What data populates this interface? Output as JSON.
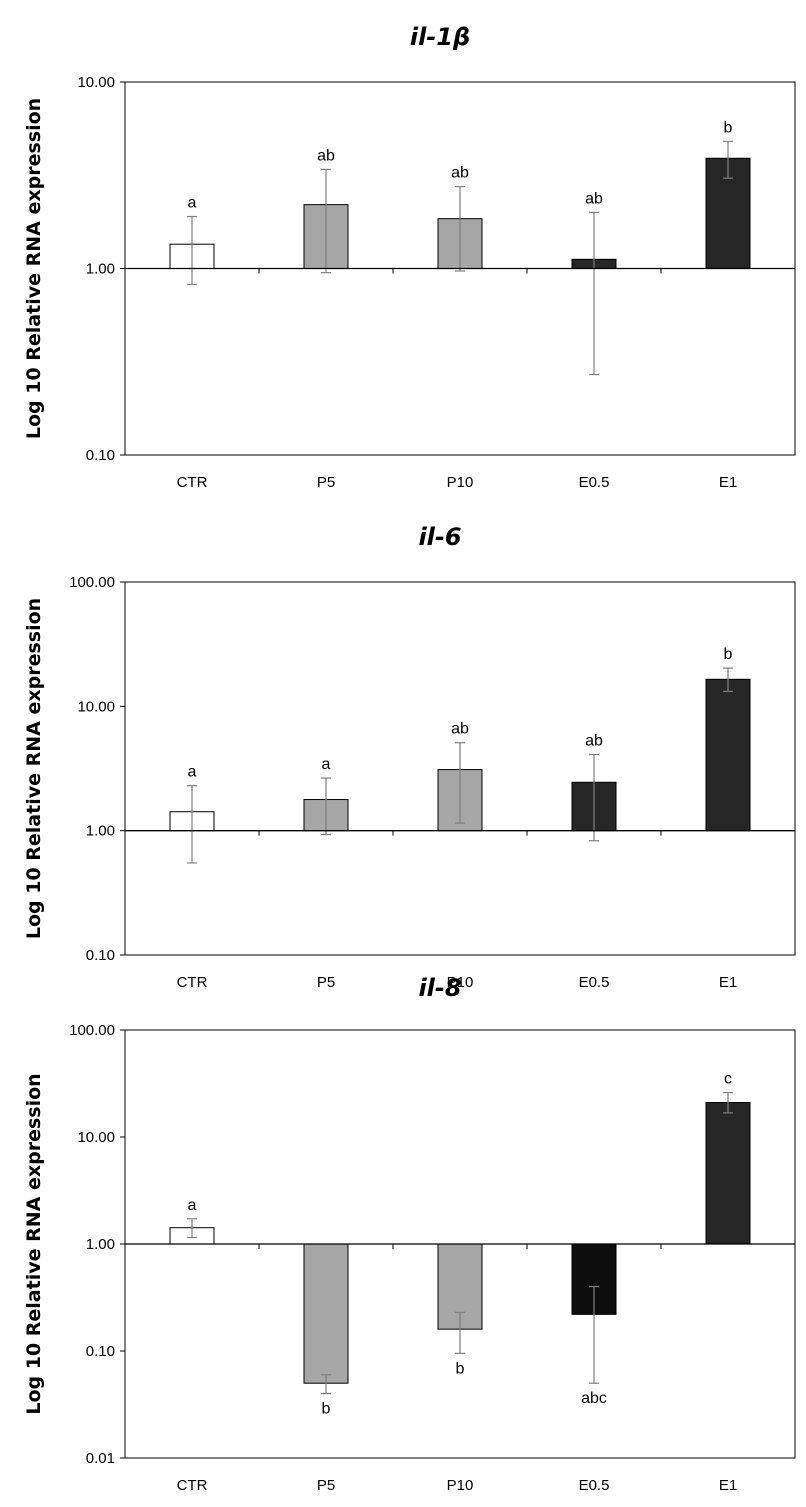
{
  "chart_data": [
    {
      "type": "bar",
      "title": "il-1β",
      "ylabel": "Log 10 Relative RNA expression",
      "xlabel": "",
      "yscale": "log",
      "baseline": 1,
      "ylim": [
        0.1,
        10
      ],
      "yticks": [
        "0.10",
        "1.00",
        "10.00"
      ],
      "categories": [
        "CTR",
        "P5",
        "P10",
        "E0.5",
        "E1"
      ],
      "values": [
        1.35,
        2.2,
        1.85,
        1.12,
        3.9
      ],
      "error_low": [
        0.82,
        0.95,
        0.97,
        0.27,
        3.05
      ],
      "error_high": [
        1.9,
        3.4,
        2.75,
        2.0,
        4.8
      ],
      "letters": [
        "a",
        "ab",
        "ab",
        "ab",
        "b"
      ],
      "colors": [
        "#ffffff",
        "#a6a6a6",
        "#a6a6a6",
        "#262626",
        "#262626"
      ]
    },
    {
      "type": "bar",
      "title": "il-6",
      "ylabel": "Log 10 Relative RNA expression",
      "xlabel": "",
      "yscale": "log",
      "baseline": 1,
      "ylim": [
        0.1,
        100
      ],
      "yticks": [
        "0.10",
        "1.00",
        "10.00",
        "100.00"
      ],
      "categories": [
        "CTR",
        "P5",
        "P10",
        "E0.5",
        "E1"
      ],
      "values": [
        1.42,
        1.78,
        3.1,
        2.45,
        16.5
      ],
      "error_low": [
        0.55,
        0.93,
        1.15,
        0.83,
        13.2
      ],
      "error_high": [
        2.3,
        2.65,
        5.1,
        4.1,
        20.3
      ],
      "letters": [
        "a",
        "a",
        "ab",
        "ab",
        "b"
      ],
      "colors": [
        "#ffffff",
        "#a6a6a6",
        "#a6a6a6",
        "#262626",
        "#262626"
      ]
    },
    {
      "type": "bar",
      "title": "il-8",
      "ylabel": "Log 10 Relative RNA expression",
      "xlabel": "",
      "yscale": "log",
      "baseline": 1,
      "ylim": [
        0.01,
        100
      ],
      "yticks": [
        "0.01",
        "0.10",
        "1.00",
        "10.00",
        "100.00"
      ],
      "categories": [
        "CTR",
        "P5",
        "P10",
        "E0.5",
        "E1"
      ],
      "values": [
        1.42,
        0.05,
        0.16,
        0.22,
        21.0
      ],
      "error_low": [
        1.15,
        0.04,
        0.095,
        0.05,
        16.8
      ],
      "error_high": [
        1.72,
        0.06,
        0.23,
        0.4,
        26.0
      ],
      "letters": [
        "a",
        "b",
        "b",
        "abc",
        "c"
      ],
      "colors": [
        "#ffffff",
        "#a6a6a6",
        "#a6a6a6",
        "#0d0d0d",
        "#262626"
      ]
    }
  ]
}
